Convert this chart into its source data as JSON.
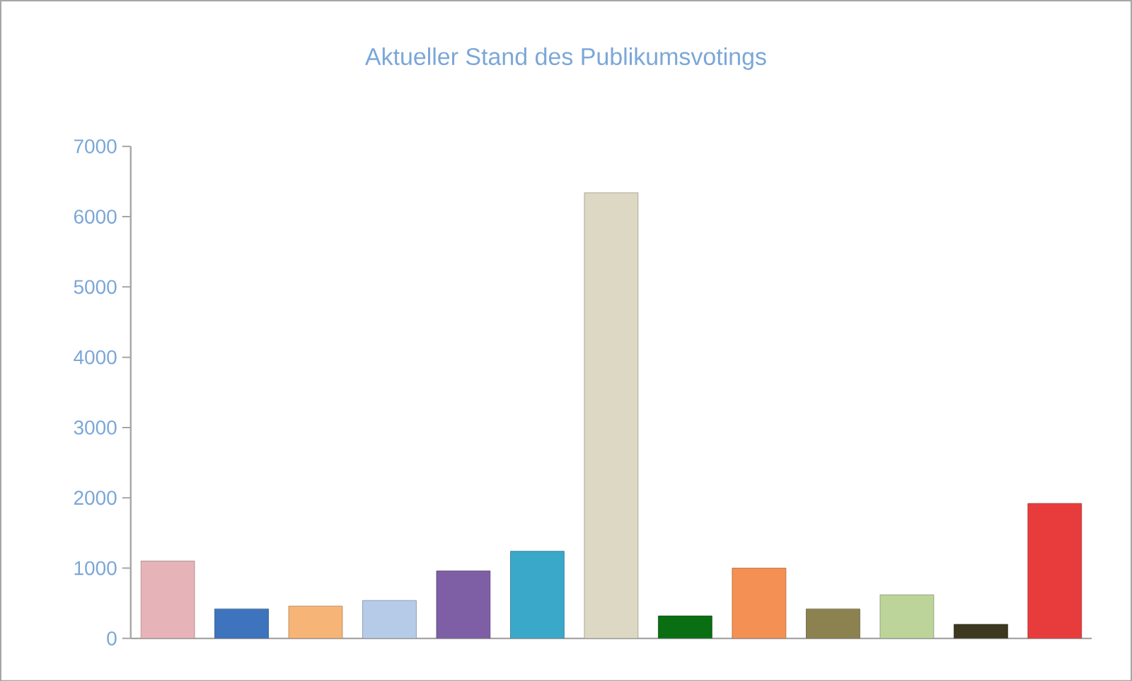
{
  "chart_data": {
    "type": "bar",
    "title": "Aktueller Stand des Publikumsvotings",
    "categories": [
      null,
      null,
      null,
      null,
      null,
      null,
      null,
      null,
      null,
      null,
      null,
      null,
      null
    ],
    "values": [
      1100,
      420,
      460,
      540,
      960,
      1240,
      6340,
      320,
      1000,
      420,
      620,
      200,
      1920
    ],
    "colors": [
      "#e6b4b8",
      "#3d74bd",
      "#f7b477",
      "#b5cbe8",
      "#7e5fa6",
      "#3aa9c9",
      "#ddd8c3",
      "#0a6e12",
      "#f59054",
      "#8c8250",
      "#bcd49a",
      "#3d3820",
      "#e83c3c"
    ],
    "ylim": [
      0,
      7000
    ],
    "yticks": [
      0,
      1000,
      2000,
      3000,
      4000,
      5000,
      6000,
      7000
    ],
    "grid": false
  }
}
